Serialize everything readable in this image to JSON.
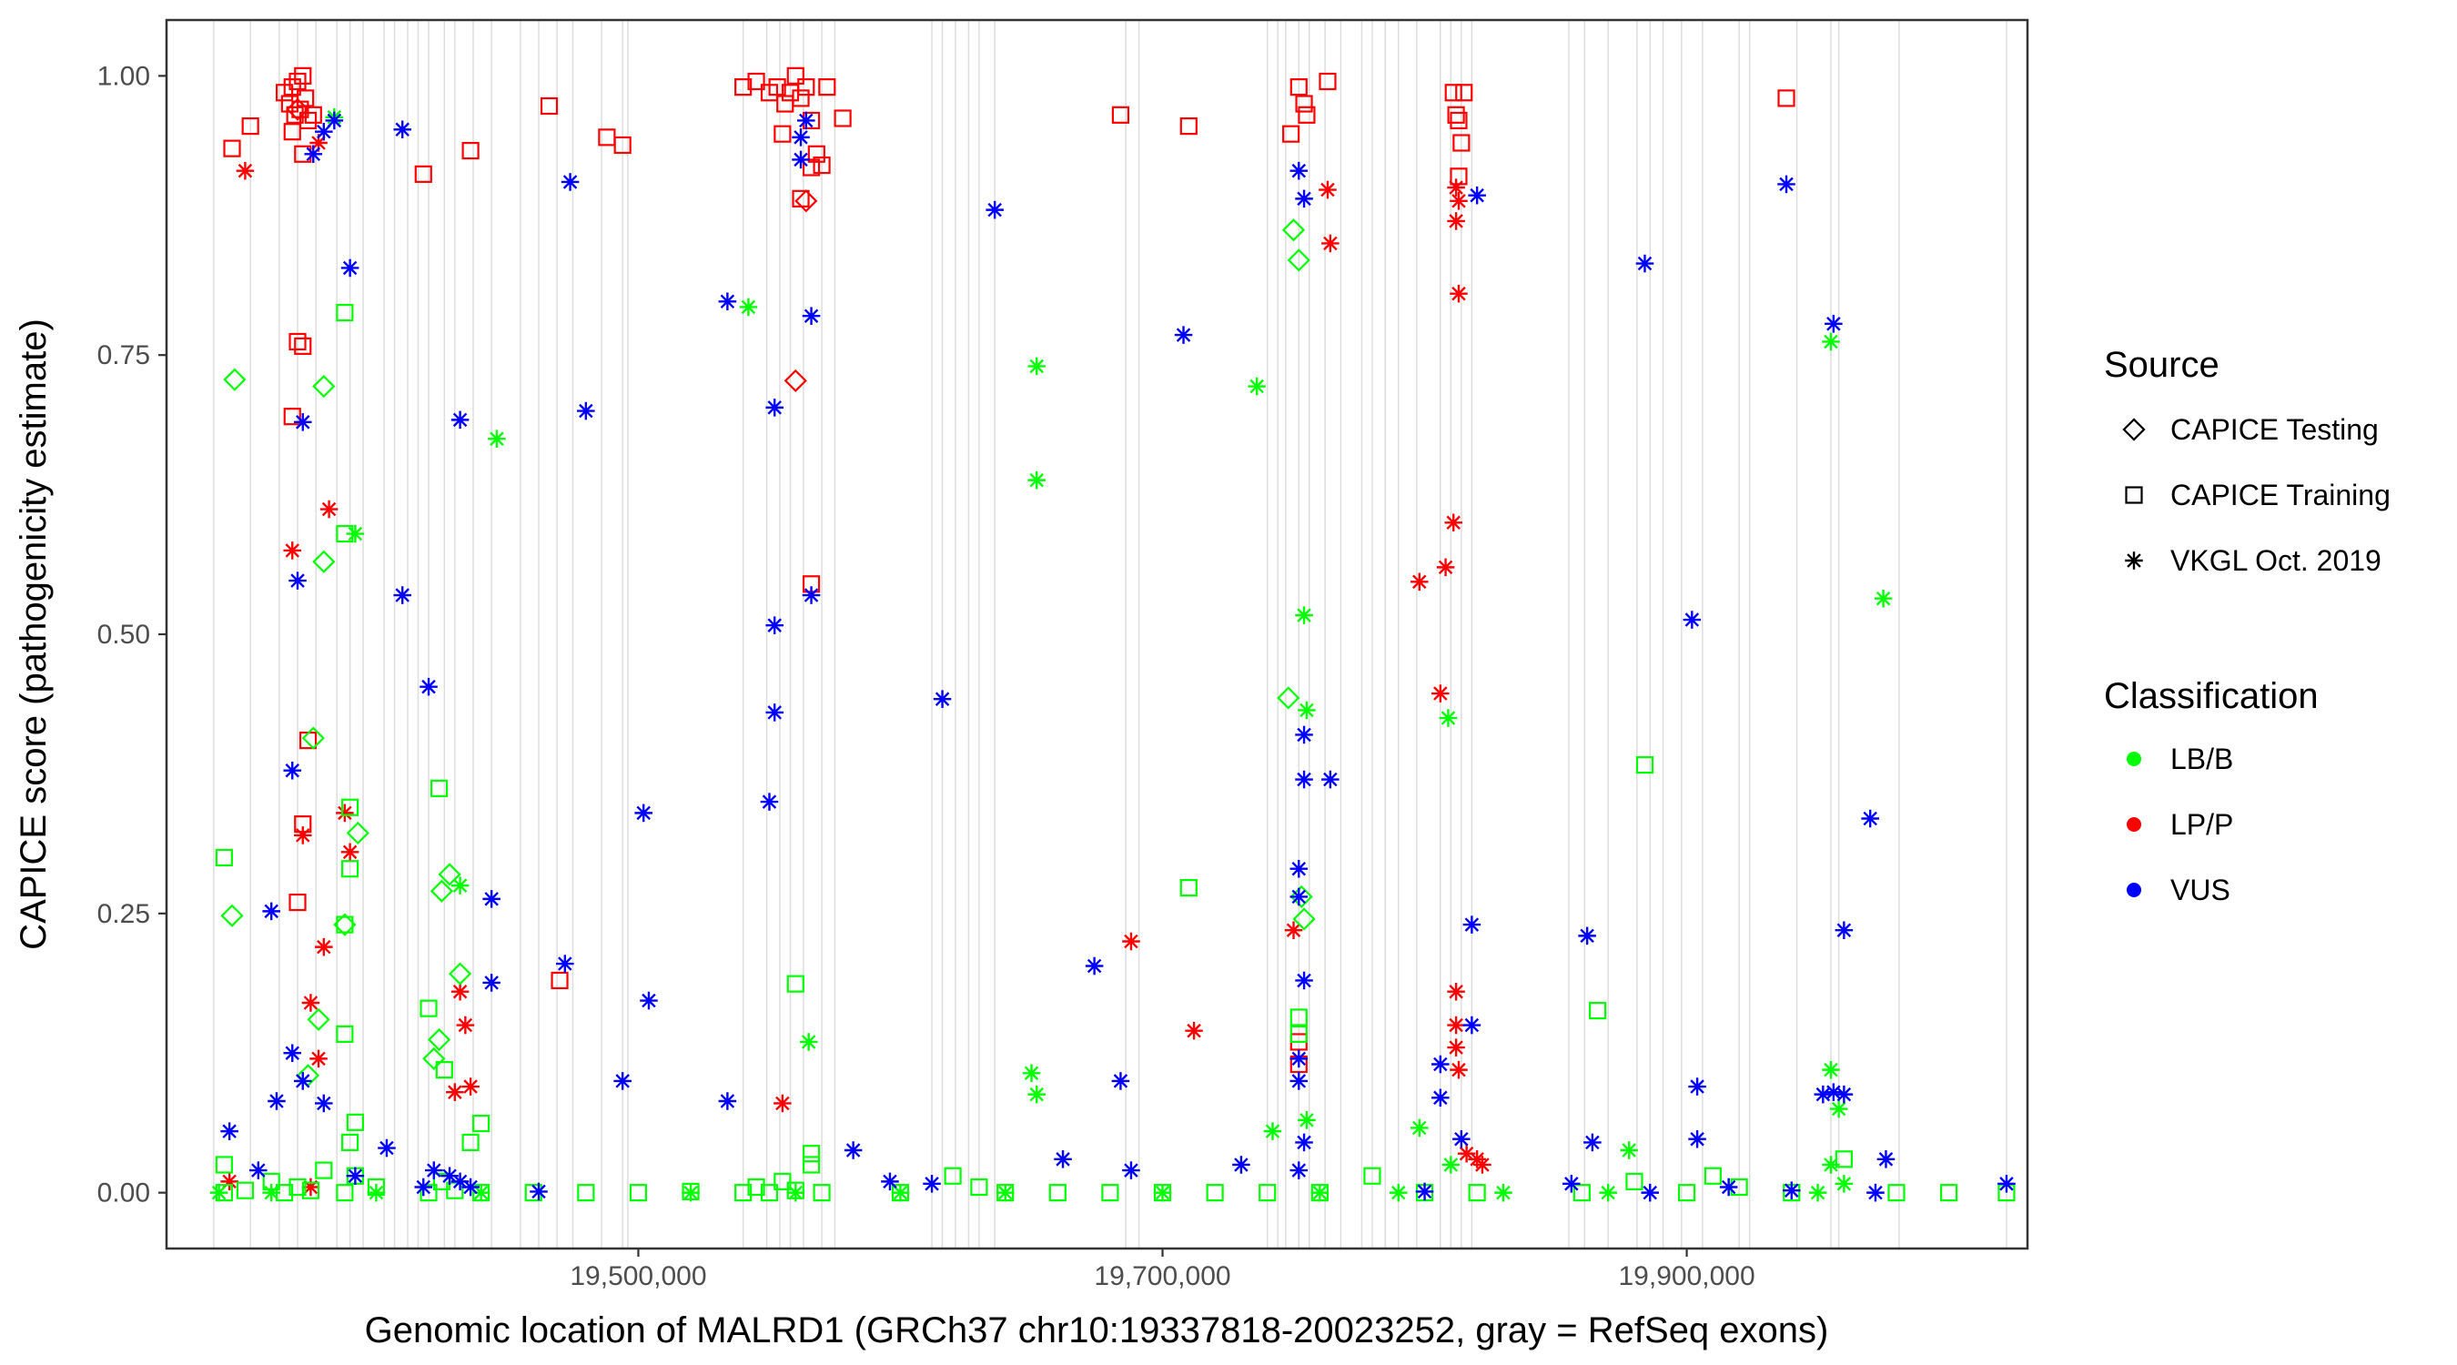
{
  "chart_data": {
    "type": "scatter",
    "xlabel": "Genomic location of MALRD1 (GRCh37 chr10:19337818-20023252, gray = RefSeq exons)",
    "ylabel": "CAPICE score (pathogenicity estimate)",
    "xlim": [
      19320000,
      20030000
    ],
    "ylim": [
      -0.05,
      1.05
    ],
    "x_ticks": [
      19500000,
      19700000,
      19900000
    ],
    "x_tick_labels": [
      "19,500,000",
      "19,700,000",
      "19,900,000"
    ],
    "y_ticks": [
      0,
      0.25,
      0.5,
      0.75,
      1.0
    ],
    "y_tick_labels": [
      "0.00",
      "0.25",
      "0.50",
      "0.75",
      "1.00"
    ],
    "exon_positions": [
      19338000,
      19352000,
      19363000,
      19370000,
      19377000,
      19385000,
      19390000,
      19395000,
      19403000,
      19407000,
      19412000,
      19416000,
      19420000,
      19426000,
      19430000,
      19437000,
      19444000,
      19455000,
      19462000,
      19469000,
      19475000,
      19486000,
      19494000,
      19496000,
      19540000,
      19549000,
      19554000,
      19558000,
      19563000,
      19570000,
      19575000,
      19612000,
      19616000,
      19621000,
      19626000,
      19630000,
      19636000,
      19686000,
      19691000,
      19740000,
      19744000,
      19747000,
      19752000,
      19756000,
      19762000,
      19768000,
      19776000,
      19780000,
      19785000,
      19790000,
      19797000,
      19806000,
      19810000,
      19814000,
      19818000,
      19855000,
      19861000,
      19870000,
      19881000,
      19886000,
      19891000,
      19898000,
      19906000,
      19920000,
      19924000,
      19942000,
      19955000,
      19958000,
      19981000,
      20022000
    ],
    "legend": {
      "source_title": "Source",
      "source_entries": [
        {
          "label": "CAPICE Testing",
          "shape": "diamond"
        },
        {
          "label": "CAPICE Training",
          "shape": "square"
        },
        {
          "label": "VKGL Oct. 2019",
          "shape": "asterisk"
        }
      ],
      "class_title": "Classification",
      "class_entries": [
        {
          "label": "LB/B",
          "color": "#00ff00"
        },
        {
          "label": "LP/P",
          "color": "#ff0000"
        },
        {
          "label": "VUS",
          "color": "#0000ff"
        }
      ]
    },
    "colors": {
      "LB/B": "#00ff00",
      "LP/P": "#ff0000",
      "VUS": "#0000ff"
    },
    "series": [
      {
        "name": "LP/P - CAPICE Training",
        "source": "CAPICE Training",
        "classification": "LP/P",
        "x": [
          19345000,
          19352000,
          19365000,
          19367000,
          19368000,
          19369000,
          19370000,
          19371000,
          19372000,
          19373000,
          19374000,
          19376000,
          19368000,
          19372000,
          19418000,
          19436000,
          19466000,
          19488000,
          19494000,
          19370000,
          19372000,
          19368000,
          19372000,
          19374000,
          19370000,
          19470000,
          19540000,
          19545000,
          19550000,
          19553000,
          19556000,
          19558000,
          19560000,
          19562000,
          19564000,
          19566000,
          19568000,
          19570000,
          19572000,
          19578000,
          19555000,
          19562000,
          19566000,
          19566000,
          19684000,
          19710000,
          19749000,
          19752000,
          19754000,
          19755000,
          19763000,
          19752000,
          19752000,
          19811000,
          19812000,
          19813000,
          19814000,
          19815000,
          19813000,
          19938000
        ],
        "y": [
          0.935,
          0.955,
          0.985,
          0.975,
          0.99,
          0.965,
          0.995,
          0.97,
          1.0,
          0.98,
          0.96,
          0.965,
          0.95,
          0.93,
          0.912,
          0.933,
          0.973,
          0.945,
          0.938,
          0.762,
          0.758,
          0.695,
          0.33,
          0.405,
          0.26,
          0.19,
          0.99,
          0.995,
          0.985,
          0.99,
          0.975,
          0.985,
          1.0,
          0.98,
          0.99,
          0.96,
          0.93,
          0.92,
          0.99,
          0.962,
          0.948,
          0.89,
          0.545,
          0.918,
          0.965,
          0.955,
          0.948,
          0.99,
          0.975,
          0.965,
          0.995,
          0.135,
          0.115,
          0.985,
          0.965,
          0.96,
          0.94,
          0.985,
          0.91,
          0.98
        ]
      },
      {
        "name": "LP/P - CAPICE Testing",
        "source": "CAPICE Testing",
        "classification": "LP/P",
        "x": [
          19560000,
          19564000,
          19370000
        ],
        "y": [
          0.727,
          0.888,
          0.97
        ]
      },
      {
        "name": "LP/P - VKGL Oct. 2019",
        "source": "VKGL Oct. 2019",
        "classification": "LP/P",
        "x": [
          19350000,
          19378000,
          19382000,
          19368000,
          19380000,
          19375000,
          19388000,
          19390000,
          19378000,
          19372000,
          19430000,
          19432000,
          19434000,
          19436000,
          19555000,
          19688000,
          19712000,
          19750000,
          19763000,
          19764000,
          19798000,
          19806000,
          19808000,
          19811000,
          19812000,
          19813000,
          19812000,
          19813000,
          19812000,
          19812000,
          19813000,
          19812000,
          19816000,
          19820000,
          19822000,
          19375000,
          19344000
        ],
        "y": [
          0.915,
          0.94,
          0.612,
          0.575,
          0.22,
          0.17,
          0.34,
          0.305,
          0.12,
          0.32,
          0.09,
          0.18,
          0.15,
          0.095,
          0.08,
          0.225,
          0.145,
          0.235,
          0.898,
          0.85,
          0.547,
          0.447,
          0.56,
          0.6,
          0.87,
          0.888,
          0.9,
          0.805,
          0.18,
          0.13,
          0.11,
          0.15,
          0.035,
          0.03,
          0.025,
          0.005,
          0.01
        ]
      },
      {
        "name": "LB/B - CAPICE Training",
        "source": "CAPICE Training",
        "classification": "LB/B",
        "x": [
          19388000,
          19388000,
          19390000,
          19390000,
          19388000,
          19388000,
          19392000,
          19390000,
          19342000,
          19342000,
          19420000,
          19424000,
          19440000,
          19436000,
          19426000,
          19560000,
          19566000,
          19566000,
          19710000,
          19752000,
          19752000,
          19884000,
          19866000,
          19342000,
          19350000,
          19360000,
          19365000,
          19370000,
          19375000,
          19380000,
          19388000,
          19392000,
          19400000,
          19420000,
          19425000,
          19430000,
          19440000,
          19460000,
          19480000,
          19500000,
          19520000,
          19540000,
          19545000,
          19550000,
          19555000,
          19560000,
          19570000,
          19600000,
          19620000,
          19630000,
          19640000,
          19660000,
          19680000,
          19700000,
          19720000,
          19740000,
          19760000,
          19780000,
          19800000,
          19820000,
          19860000,
          19880000,
          19900000,
          19910000,
          19920000,
          19940000,
          19960000,
          19980000,
          20000000,
          20022000
        ],
        "y": [
          0.788,
          0.59,
          0.345,
          0.29,
          0.24,
          0.142,
          0.063,
          0.045,
          0.3,
          0.025,
          0.165,
          0.362,
          0.062,
          0.045,
          0.11,
          0.187,
          0.035,
          0.025,
          0.273,
          0.157,
          0.142,
          0.383,
          0.163,
          0.0,
          0.002,
          0.01,
          0.0,
          0.005,
          0.002,
          0.02,
          0.0,
          0.015,
          0.005,
          0.0,
          0.01,
          0.002,
          0.0,
          0.0,
          0.0,
          0.0,
          0.001,
          0.0,
          0.005,
          0.0,
          0.01,
          0.002,
          0.0,
          0.0,
          0.015,
          0.005,
          0.0,
          0.0,
          0.0,
          0.0,
          0.0,
          0.0,
          0.0,
          0.015,
          0.0,
          0.0,
          0.0,
          0.01,
          0.0,
          0.015,
          0.005,
          0.0,
          0.03,
          0.0,
          0.0,
          0.0
        ]
      },
      {
        "name": "LB/B - CAPICE Testing",
        "source": "CAPICE Testing",
        "classification": "LB/B",
        "x": [
          19346000,
          19380000,
          19345000,
          19376000,
          19388000,
          19393000,
          19380000,
          19378000,
          19428000,
          19425000,
          19432000,
          19424000,
          19422000,
          19750000,
          19752000,
          19748000,
          19753000,
          19754000,
          19374000
        ],
        "y": [
          0.728,
          0.722,
          0.248,
          0.407,
          0.24,
          0.322,
          0.565,
          0.155,
          0.285,
          0.27,
          0.196,
          0.137,
          0.12,
          0.862,
          0.835,
          0.443,
          0.265,
          0.245,
          0.105
        ]
      },
      {
        "name": "LB/B - VKGL Oct. 2019",
        "source": "VKGL Oct. 2019",
        "classification": "LB/B",
        "x": [
          19384000,
          19392000,
          19542000,
          19446000,
          19432000,
          19652000,
          19652000,
          19650000,
          19652000,
          19736000,
          19754000,
          19755000,
          19809000,
          19810000,
          19955000,
          19975000,
          19955000,
          19958000,
          19955000,
          19565000,
          19742000,
          19755000,
          19798000,
          19878000,
          19960000,
          19340000,
          19360000,
          19400000,
          19440000,
          19520000,
          19560000,
          19600000,
          19640000,
          19700000,
          19760000,
          19790000,
          19830000,
          19870000,
          19950000
        ],
        "y": [
          0.963,
          0.59,
          0.793,
          0.675,
          0.275,
          0.74,
          0.638,
          0.107,
          0.088,
          0.722,
          0.517,
          0.432,
          0.425,
          0.025,
          0.762,
          0.532,
          0.11,
          0.075,
          0.025,
          0.135,
          0.055,
          0.065,
          0.058,
          0.038,
          0.008,
          0.0,
          0.0,
          0.0,
          0.0,
          0.0,
          0.0,
          0.0,
          0.0,
          0.0,
          0.0,
          0.0,
          0.0,
          0.0,
          0.0
        ]
      },
      {
        "name": "VUS - VKGL Oct. 2019",
        "source": "VKGL Oct. 2019",
        "classification": "VUS",
        "x": [
          19376000,
          19380000,
          19384000,
          19410000,
          19474000,
          19390000,
          19372000,
          19432000,
          19480000,
          19370000,
          19410000,
          19420000,
          19368000,
          19360000,
          19444000,
          19472000,
          19444000,
          19502000,
          19504000,
          19494000,
          19534000,
          19552000,
          19552000,
          19552000,
          19550000,
          19534000,
          19566000,
          19566000,
          19564000,
          19562000,
          19562000,
          19636000,
          19616000,
          19708000,
          19674000,
          19684000,
          19596000,
          19752000,
          19754000,
          19754000,
          19764000,
          19754000,
          19752000,
          19752000,
          19754000,
          19752000,
          19752000,
          19754000,
          19752000,
          19820000,
          19818000,
          19818000,
          19814000,
          19806000,
          19806000,
          19862000,
          19864000,
          19884000,
          19902000,
          19904000,
          19904000,
          19938000,
          19956000,
          19956000,
          19960000,
          19960000,
          19970000,
          19952000,
          19976000,
          19344000,
          19355000,
          19362000,
          19368000,
          19372000,
          19380000,
          19392000,
          19404000,
          19418000,
          19422000,
          19428000,
          19432000,
          19436000,
          19462000,
          19582000,
          19612000,
          19662000,
          19688000,
          19730000,
          19800000,
          19856000,
          19886000,
          19916000,
          19940000,
          19972000,
          20022000
        ],
        "y": [
          0.93,
          0.95,
          0.96,
          0.952,
          0.905,
          0.828,
          0.69,
          0.692,
          0.7,
          0.548,
          0.535,
          0.453,
          0.378,
          0.252,
          0.263,
          0.205,
          0.188,
          0.34,
          0.172,
          0.1,
          0.798,
          0.703,
          0.508,
          0.43,
          0.35,
          0.082,
          0.785,
          0.535,
          0.96,
          0.925,
          0.945,
          0.88,
          0.442,
          0.768,
          0.203,
          0.1,
          0.01,
          0.915,
          0.89,
          0.41,
          0.37,
          0.37,
          0.29,
          0.265,
          0.19,
          0.12,
          0.1,
          0.045,
          0.02,
          0.893,
          0.24,
          0.15,
          0.048,
          0.115,
          0.085,
          0.23,
          0.045,
          0.832,
          0.513,
          0.095,
          0.048,
          0.903,
          0.778,
          0.09,
          0.088,
          0.235,
          0.335,
          0.088,
          0.03,
          0.055,
          0.02,
          0.082,
          0.125,
          0.1,
          0.08,
          0.015,
          0.04,
          0.005,
          0.02,
          0.015,
          0.01,
          0.005,
          0.001,
          0.038,
          0.008,
          0.03,
          0.02,
          0.025,
          0.001,
          0.008,
          0.0,
          0.005,
          0.002,
          0.0,
          0.008
        ]
      }
    ]
  }
}
